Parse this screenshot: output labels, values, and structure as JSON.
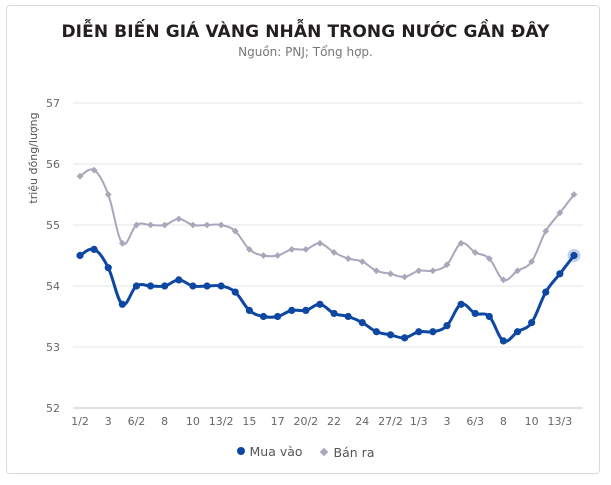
{
  "header": {
    "title": "DIỄN BIẾN GIÁ VÀNG NHẪN TRONG NƯỚC GẦN ĐÂY",
    "subtitle": "Nguồn: PNJ; Tổng hợp."
  },
  "legend": {
    "items": [
      {
        "label": "Mua vào",
        "color": "#0d47a1",
        "marker": "circle"
      },
      {
        "label": "Bán ra",
        "color": "#a9a7b9",
        "marker": "diamond"
      }
    ]
  },
  "colors": {
    "buy": "#0d47a1",
    "sell": "#a9a7b9",
    "grid": "#e6e6e6",
    "axis_text": "#666666"
  },
  "chart_data": {
    "type": "line",
    "title": "DIỄN BIẾN GIÁ VÀNG NHẪN TRONG NƯỚC GẦN ĐÂY",
    "subtitle": "Nguồn: PNJ; Tổng hợp.",
    "xlabel": "",
    "ylabel": "triệu đồng/lượng",
    "ylim": [
      52,
      57
    ],
    "yticks": [
      52,
      53,
      54,
      55,
      56,
      57
    ],
    "grid": true,
    "legend_position": "bottom",
    "x_tick_labels": [
      "1/2",
      "3",
      "6/2",
      "8",
      "10",
      "13/2",
      "15",
      "17",
      "20/2",
      "22",
      "24",
      "27/2",
      "1/3",
      "3",
      "6/3",
      "8",
      "10",
      "13/3"
    ],
    "x_tick_every": 2,
    "point_count": 36,
    "series": [
      {
        "name": "Mua vào",
        "color": "#0d47a1",
        "values": [
          54.5,
          54.6,
          54.3,
          53.7,
          54.0,
          54.0,
          54.0,
          54.1,
          54.0,
          54.0,
          54.0,
          53.9,
          53.6,
          53.5,
          53.5,
          53.6,
          53.6,
          53.7,
          53.55,
          53.5,
          53.4,
          53.25,
          53.2,
          53.15,
          53.25,
          53.25,
          53.35,
          53.7,
          53.55,
          53.5,
          53.1,
          53.25,
          53.4,
          53.9,
          54.2,
          54.5
        ]
      },
      {
        "name": "Bán ra",
        "color": "#a9a7b9",
        "values": [
          55.8,
          55.9,
          55.5,
          54.7,
          55.0,
          55.0,
          55.0,
          55.1,
          55.0,
          55.0,
          55.0,
          54.9,
          54.6,
          54.5,
          54.5,
          54.6,
          54.6,
          54.7,
          54.55,
          54.45,
          54.4,
          54.25,
          54.2,
          54.15,
          54.25,
          54.25,
          54.35,
          54.7,
          54.55,
          54.45,
          54.1,
          54.25,
          54.4,
          54.9,
          55.2,
          55.5
        ]
      }
    ]
  }
}
